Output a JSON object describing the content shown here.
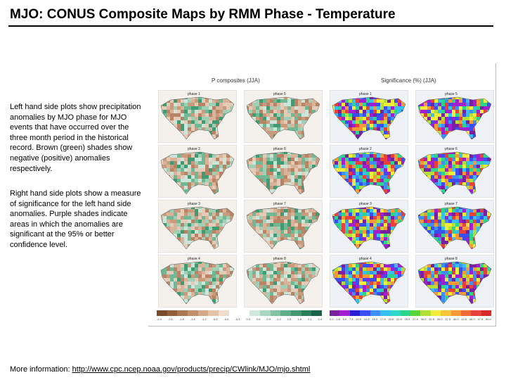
{
  "header": {
    "title": "MJO: CONUS Composite Maps by RMM Phase - Temperature"
  },
  "description": {
    "left": "Left hand side plots show precipitation anomalies by MJO phase for MJO events that have occurred over the three month period in the historical record. Brown (green) shades show negative (positive) anomalies respectively.",
    "right": "Right hand side plots show a measure of significance for the left hand side anomalies. Purple shades indicate areas in which the anomalies are significant at the 95% or better confidence level."
  },
  "figure": {
    "left_header": "P composites (JJA)",
    "right_header": "Significance (%) (JJA)",
    "rows": [
      {
        "anomaly": [
          "phase 1",
          "phase 5"
        ],
        "significance": [
          "phase 1",
          "phase 5"
        ]
      },
      {
        "anomaly": [
          "phase 2",
          "phase 6"
        ],
        "significance": [
          "phase 2",
          "phase 6"
        ]
      },
      {
        "anomaly": [
          "phase 3",
          "phase 7"
        ],
        "significance": [
          "phase 3",
          "phase 7"
        ]
      },
      {
        "anomaly": [
          "phase 4",
          "phase 8"
        ],
        "significance": [
          "phase 4",
          "phase 8"
        ]
      }
    ],
    "anomaly_colorbar": {
      "colors": [
        "#7a4a2a",
        "#94603c",
        "#ad7752",
        "#c38f6a",
        "#d6a888",
        "#e5c3a8",
        "#f0dccb",
        "#ffffff",
        "#ffffff",
        "#cfe8dc",
        "#a8d6bf",
        "#82c3a3",
        "#5fae88",
        "#41976f",
        "#2a7e58",
        "#166445"
      ],
      "ticks": [
        "-2.4",
        "-2.1",
        "-1.8",
        "-1.5",
        "-1.2",
        "-0.9",
        "-0.6",
        "-0.3",
        "0.3",
        "0.6",
        "0.9",
        "1.2",
        "1.5",
        "1.8",
        "2.1",
        "2.4"
      ]
    },
    "significance_colorbar": {
      "colors": [
        "#7b1fa2",
        "#a21fd0",
        "#2b1fd6",
        "#3a4ef5",
        "#3f8df7",
        "#36c0f2",
        "#2ed8c9",
        "#2bd68a",
        "#58d63a",
        "#b3e038",
        "#f2ec3a",
        "#f7c438",
        "#f59a36",
        "#f06c36",
        "#e8413a",
        "#d62a2a"
      ],
      "ticks": [
        "0.0",
        "2.5",
        "5.0",
        "7.5",
        "10.0",
        "12.5",
        "15.0",
        "17.5",
        "20.0",
        "22.5",
        "25.0",
        "27.5",
        "30.0",
        "32.5",
        "35.0",
        "37.5",
        "40.0",
        "42.5",
        "45.0",
        "47.5",
        "50.0"
      ]
    }
  },
  "footer": {
    "prefix": "More information: ",
    "link": "http://www.cpc.ncep.noaa.gov/products/precip/CWlink/MJO/mjo.shtml"
  }
}
